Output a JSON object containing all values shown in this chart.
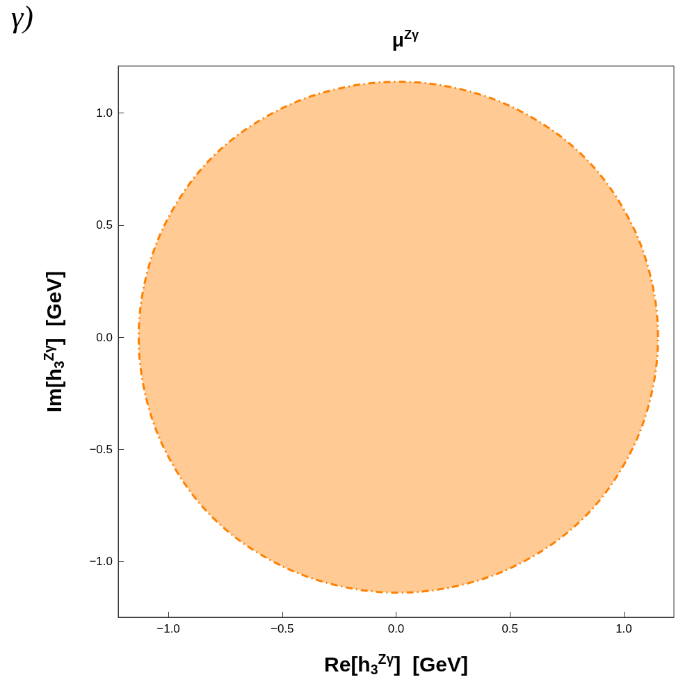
{
  "chart_data": {
    "type": "area",
    "title": "μ$^{Zγ}$",
    "xlabel": "Re[h$_{3}$$^{Zγ}$]  [GeV]",
    "ylabel": "Im[h$_{3}$$^{Zγ}$]  [GeV]",
    "annotations": [
      "γ)"
    ],
    "xlim": [
      -1.22,
      1.22
    ],
    "ylim": [
      -1.25,
      1.21
    ],
    "xticks": [
      {
        "value": -1,
        "label": "−1.0"
      },
      {
        "value": -0.5,
        "label": "−0.5"
      },
      {
        "value": 0,
        "label": "0.0"
      },
      {
        "value": 0.5,
        "label": "0.5"
      },
      {
        "value": 1,
        "label": "1.0"
      }
    ],
    "yticks": [
      {
        "value": -1,
        "label": "−1.0"
      },
      {
        "value": -0.5,
        "label": "−0.5"
      },
      {
        "value": 0,
        "label": "0.0"
      },
      {
        "value": 0.5,
        "label": "0.5"
      },
      {
        "value": 1,
        "label": "1.0"
      }
    ],
    "grid": false,
    "line_style": "dashed",
    "series": [
      {
        "color": "#ff8000",
        "x": [
          1.15,
          1.11,
          1.0,
          0.82,
          0.58,
          0.31,
          0.01,
          -0.29,
          -0.56,
          -0.8,
          -0.98,
          -1.09,
          -1.13,
          -1.09,
          -0.98,
          -0.8,
          -0.56,
          -0.29,
          0.01,
          0.31,
          0.58,
          0.82,
          1.0,
          1.11
        ],
        "values": [
          0,
          0.3,
          0.57,
          0.81,
          0.99,
          1.1,
          1.14,
          1.1,
          0.99,
          0.81,
          0.57,
          0.3,
          0,
          -0.3,
          -0.57,
          -0.81,
          -0.99,
          -1.1,
          -1.14,
          -1.1,
          -0.99,
          -0.81,
          -0.57,
          -0.3
        ]
      }
    ]
  }
}
